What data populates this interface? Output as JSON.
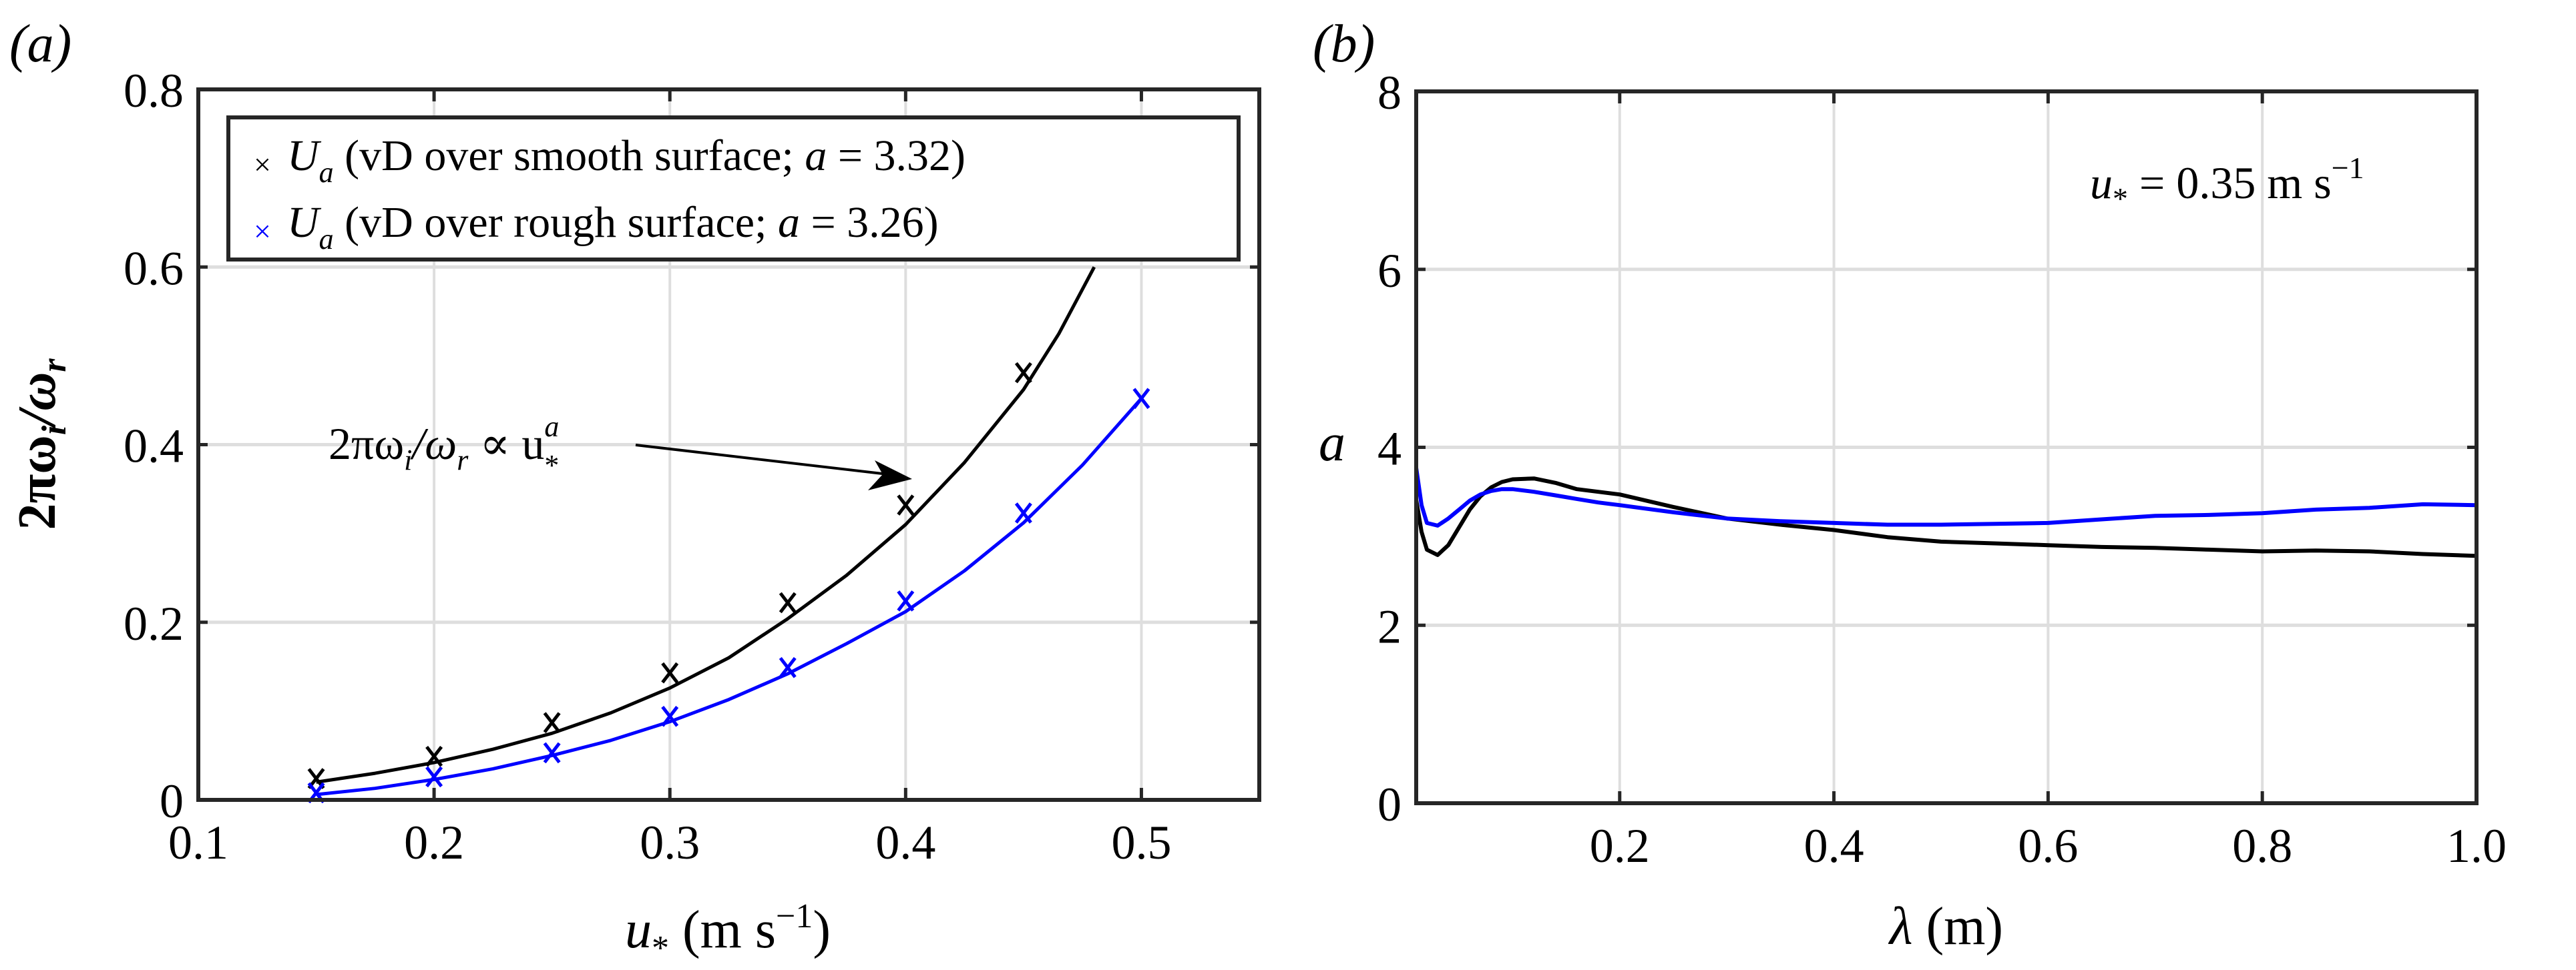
{
  "figure": {
    "panels": [
      {
        "id": "a",
        "panel_label": "(a)",
        "xlabel_main": "u",
        "xlabel_sub": "*",
        "xlabel_units": " (m s",
        "xlabel_sup": "−1",
        "xlabel_close": ")",
        "ylabel": "2πω",
        "ylabel_sub1": "i",
        "ylabel_mid": "/ω",
        "ylabel_sub2": "r",
        "legend": [
          {
            "marker": "×",
            "color": "#000000",
            "text_U": "U",
            "text_sub": "a",
            "text_rest": " (vD over smooth surface; ",
            "text_a": "a",
            "text_val": " = 3.32)"
          },
          {
            "marker": "×",
            "color": "#0000ff",
            "text_U": "U",
            "text_sub": "a",
            "text_rest": " (vD over rough surface; ",
            "text_a": "a",
            "text_val": " = 3.26)"
          }
        ],
        "annotation": {
          "text_main": "2πω",
          "sub_i": "i",
          "mid": "/ω",
          "sub_r": "r",
          "prop": " ∝ u",
          "sup": "a",
          "sub_star": "*"
        }
      },
      {
        "id": "b",
        "panel_label": "(b)",
        "xlabel_main": "λ",
        "xlabel_units": " (m)",
        "ylabel": "a",
        "annotation": {
          "u": "u",
          "sub": "*",
          "rest": " = 0.35 m s",
          "sup": "−1"
        }
      }
    ]
  },
  "chart_data": [
    {
      "type": "scatter",
      "title": "(a)",
      "xlabel": "u* (m s−1)",
      "ylabel": "2πωi/ωr",
      "xlim": [
        0.1,
        0.55
      ],
      "ylim": [
        0,
        0.8
      ],
      "xticks": [
        0.1,
        0.2,
        0.3,
        0.4,
        0.5
      ],
      "xtick_labels": [
        "0.1",
        "0.2",
        "0.3",
        "0.4",
        "0.5"
      ],
      "yticks": [
        0,
        0.2,
        0.4,
        0.6,
        0.8
      ],
      "ytick_labels": [
        "0",
        "0.2",
        "0.4",
        "0.6",
        "0.8"
      ],
      "grid": true,
      "legend_position": "upper left",
      "annotation": "2πωi/ωr ∝ u*^a",
      "series": [
        {
          "name": "Ua (vD over smooth surface; a = 3.32)",
          "color": "#000000",
          "marker": "x",
          "x": [
            0.15,
            0.2,
            0.25,
            0.3,
            0.35,
            0.4,
            0.45
          ],
          "y": [
            0.024,
            0.049,
            0.087,
            0.143,
            0.222,
            0.332,
            0.481
          ],
          "fit": {
            "exponent": 3.32,
            "x": [
              0.15,
              0.175,
              0.2,
              0.225,
              0.25,
              0.275,
              0.3,
              0.325,
              0.35,
              0.375,
              0.4,
              0.425,
              0.45,
              0.465,
              0.48
            ],
            "y": [
              0.02,
              0.03,
              0.042,
              0.057,
              0.075,
              0.098,
              0.126,
              0.16,
              0.204,
              0.253,
              0.31,
              0.38,
              0.462,
              0.525,
              0.6
            ]
          }
        },
        {
          "name": "Ua (vD over rough surface; a = 3.26)",
          "color": "#0000ff",
          "marker": "x",
          "x": [
            0.15,
            0.2,
            0.25,
            0.3,
            0.35,
            0.4,
            0.45,
            0.5
          ],
          "y": [
            0.008,
            0.026,
            0.053,
            0.094,
            0.149,
            0.224,
            0.323,
            0.452
          ],
          "fit": {
            "exponent": 3.26,
            "x": [
              0.15,
              0.175,
              0.2,
              0.225,
              0.25,
              0.275,
              0.3,
              0.325,
              0.35,
              0.375,
              0.4,
              0.425,
              0.45,
              0.475,
              0.5
            ],
            "y": [
              0.006,
              0.013,
              0.023,
              0.035,
              0.05,
              0.067,
              0.088,
              0.113,
              0.142,
              0.176,
              0.212,
              0.258,
              0.312,
              0.377,
              0.452
            ]
          }
        }
      ]
    },
    {
      "type": "line",
      "title": "(b)",
      "xlabel": "λ (m)",
      "ylabel": "a",
      "xlim": [
        0.01,
        1.0
      ],
      "ylim": [
        0,
        8
      ],
      "xticks": [
        0.2,
        0.4,
        0.6,
        0.8,
        1.0
      ],
      "xtick_labels": [
        "0.2",
        "0.4",
        "0.6",
        "0.8",
        "1.0"
      ],
      "yticks": [
        0,
        2,
        4,
        6,
        8
      ],
      "ytick_labels": [
        "0",
        "2",
        "4",
        "6",
        "8"
      ],
      "grid": true,
      "annotation": "u* = 0.35 m s−1",
      "series": [
        {
          "name": "smooth surface",
          "color": "#000000",
          "x": [
            0.01,
            0.015,
            0.02,
            0.03,
            0.04,
            0.05,
            0.06,
            0.07,
            0.08,
            0.09,
            0.1,
            0.12,
            0.14,
            0.16,
            0.18,
            0.2,
            0.25,
            0.3,
            0.35,
            0.4,
            0.45,
            0.5,
            0.55,
            0.6,
            0.65,
            0.7,
            0.75,
            0.8,
            0.85,
            0.9,
            0.95,
            1.0
          ],
          "y": [
            3.41,
            3.05,
            2.85,
            2.79,
            2.9,
            3.1,
            3.3,
            3.45,
            3.55,
            3.61,
            3.64,
            3.65,
            3.6,
            3.53,
            3.5,
            3.47,
            3.33,
            3.2,
            3.13,
            3.07,
            2.99,
            2.94,
            2.92,
            2.9,
            2.88,
            2.87,
            2.85,
            2.83,
            2.84,
            2.83,
            2.8,
            2.78
          ]
        },
        {
          "name": "rough surface",
          "color": "#0000ff",
          "x": [
            0.01,
            0.015,
            0.02,
            0.03,
            0.04,
            0.05,
            0.06,
            0.07,
            0.08,
            0.09,
            0.1,
            0.12,
            0.14,
            0.16,
            0.18,
            0.2,
            0.25,
            0.3,
            0.35,
            0.4,
            0.45,
            0.5,
            0.55,
            0.6,
            0.65,
            0.7,
            0.75,
            0.8,
            0.85,
            0.9,
            0.95,
            1.0
          ],
          "y": [
            3.77,
            3.35,
            3.15,
            3.12,
            3.2,
            3.3,
            3.4,
            3.47,
            3.51,
            3.53,
            3.53,
            3.5,
            3.46,
            3.42,
            3.38,
            3.35,
            3.27,
            3.2,
            3.17,
            3.15,
            3.13,
            3.13,
            3.14,
            3.15,
            3.19,
            3.23,
            3.24,
            3.26,
            3.3,
            3.32,
            3.36,
            3.35
          ]
        }
      ]
    }
  ]
}
